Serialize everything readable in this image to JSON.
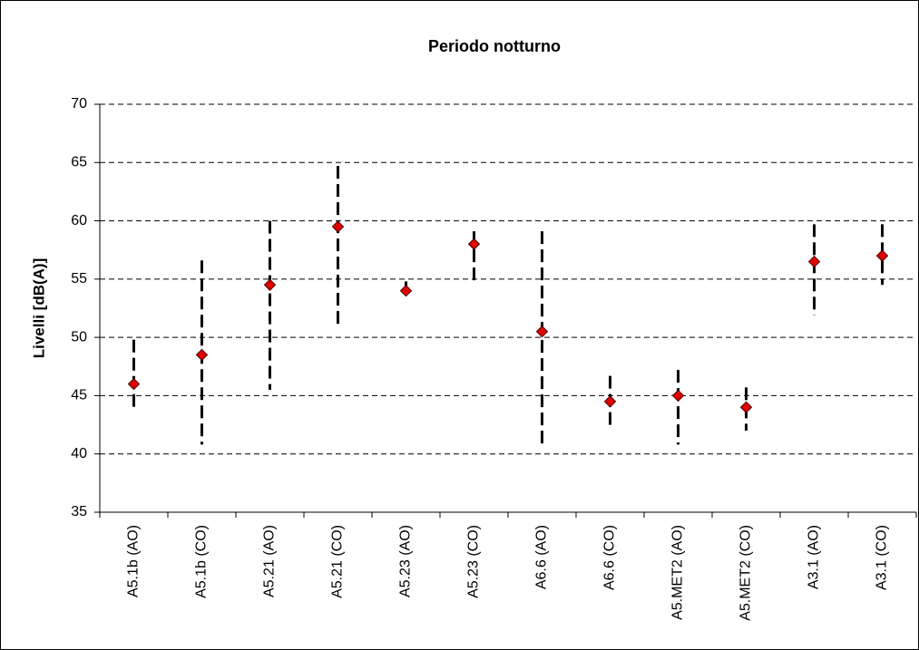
{
  "chart_data": {
    "type": "range",
    "title": "Periodo notturno",
    "y_label": "Livelli [dB(A)]",
    "categories": [
      "A5.1b (AO)",
      "A5.1b (CO)",
      "A5.21 (AO)",
      "A5.21 (CO)",
      "A5.23 (AO)",
      "A5.23 (CO)",
      "A6.6 (AO)",
      "A6.6 (CO)",
      "A5.MET2 (AO)",
      "A5.MET2 (CO)",
      "A3.1 (AO)",
      "A3.1 (CO)"
    ],
    "values": [
      46,
      48.5,
      54.5,
      59.5,
      54,
      58,
      50.5,
      44.5,
      45,
      44,
      56.5,
      57
    ],
    "high": [
      49.8,
      56.6,
      60,
      64.7,
      54.8,
      59.1,
      59.1,
      46.7,
      47.2,
      45.7,
      59.7,
      59.7
    ],
    "low": [
      43.6,
      40.8,
      45.5,
      50.9,
      53.4,
      54.8,
      40.8,
      42.5,
      40.8,
      42,
      51.9,
      54.5
    ],
    "color": "#e00000",
    "ylim": [
      35,
      70
    ],
    "yticks": [
      35,
      40,
      45,
      50,
      55,
      60,
      65,
      70
    ],
    "grid": true
  }
}
